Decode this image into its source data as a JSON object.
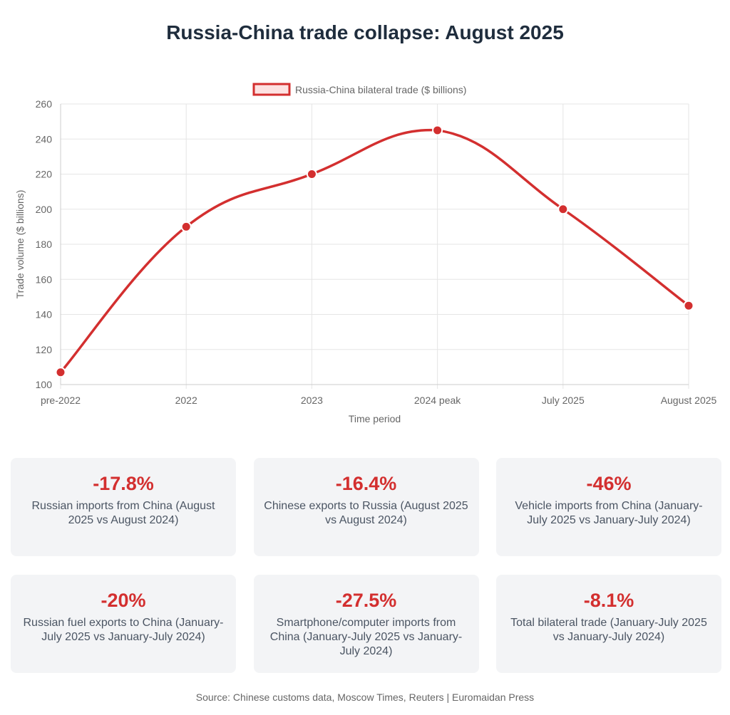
{
  "title": "Russia-China trade collapse: August 2025",
  "chart_data": {
    "type": "line",
    "categories": [
      "pre-2022",
      "2022",
      "2023",
      "2024 peak",
      "July 2025",
      "August 2025"
    ],
    "series": [
      {
        "name": "Russia-China bilateral trade ($ billions)",
        "values": [
          107,
          190,
          220,
          245,
          200,
          145
        ],
        "color": "#d32f2f"
      }
    ],
    "xlabel": "Time period",
    "ylabel": "Trade volume ($ billions)",
    "ylim": [
      100,
      260
    ],
    "yticks": [
      100,
      120,
      140,
      160,
      180,
      200,
      220,
      240,
      260
    ],
    "grid": true,
    "legend_position": "top-center",
    "line_style": "smooth"
  },
  "stats": [
    {
      "value": "-17.8%",
      "label": "Russian imports from China (August 2025 vs August 2024)"
    },
    {
      "value": "-16.4%",
      "label": "Chinese exports to Russia (August 2025 vs August 2024)"
    },
    {
      "value": "-46%",
      "label": "Vehicle imports from China (January-July 2025 vs January-July 2024)"
    },
    {
      "value": "-20%",
      "label": "Russian fuel exports to China (January-July 2025 vs January-July 2024)"
    },
    {
      "value": "-27.5%",
      "label": "Smartphone/computer imports from China (January-July 2025 vs January-July 2024)"
    },
    {
      "value": "-8.1%",
      "label": "Total bilateral trade (January-July 2025 vs January-July 2024)"
    }
  ],
  "source": "Source: Chinese customs data, Moscow Times, Reuters | Euromaidan Press",
  "colors": {
    "accent": "#d32f2f",
    "card_bg": "#f3f4f6",
    "title": "#1f2d3d"
  }
}
